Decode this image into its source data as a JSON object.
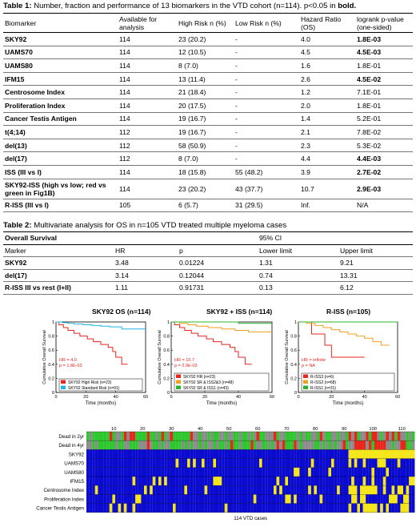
{
  "table1": {
    "caption_label": "Table 1:",
    "caption_text": " Number, fraction and performance of 13 biomarkers in the VTD cohort (n=114). p<0.05 in ",
    "caption_bold": "bold.",
    "headers": [
      "Biomarker",
      "Available for analysis",
      "High Risk n (%)",
      "Low Risk n (%)",
      "Hazard Ratio (OS)",
      "logrank p-value (one-sided)"
    ],
    "rows": [
      {
        "marker": "SKY92",
        "avail": "114",
        "high": "23 (20.2)",
        "low": "-",
        "hr": "4.0",
        "p": "1.8E-03",
        "sig": true
      },
      {
        "marker": "UAMS70",
        "avail": "114",
        "high": "12 (10.5)",
        "low": "-",
        "hr": "4.5",
        "p": "4.5E-03",
        "sig": true
      },
      {
        "marker": "UAMS80",
        "avail": "114",
        "high": "8 (7.0)",
        "low": "-",
        "hr": "1.6",
        "p": "1.8E-01",
        "sig": false
      },
      {
        "marker": "IFM15",
        "avail": "114",
        "high": "13 (11.4)",
        "low": "-",
        "hr": "2.6",
        "p": "4.5E-02",
        "sig": true
      },
      {
        "marker": "Centrosome Index",
        "avail": "114",
        "high": "21 (18.4)",
        "low": "-",
        "hr": "1.2",
        "p": "7.1E-01",
        "sig": false
      },
      {
        "marker": "Proliferation Index",
        "avail": "114",
        "high": "20 (17.5)",
        "low": "-",
        "hr": "2.0",
        "p": "1.8E-01",
        "sig": false
      },
      {
        "marker": "Cancer Testis Antigen",
        "avail": "114",
        "high": "19 (16.7)",
        "low": "-",
        "hr": "1.4",
        "p": "5.2E-01",
        "sig": false
      },
      {
        "marker": "t(4;14)",
        "avail": "112",
        "high": "19 (16.7)",
        "low": "-",
        "hr": "2.1",
        "p": "7.8E-02",
        "sig": false
      },
      {
        "marker": "del(13)",
        "avail": "112",
        "high": "58 (50.9)",
        "low": "-",
        "hr": "2.3",
        "p": "5.3E-02",
        "sig": false
      },
      {
        "marker": "del(17)",
        "avail": "112",
        "high": "8 (7.0)",
        "low": "-",
        "hr": "4.4",
        "p": "4.4E-03",
        "sig": true
      },
      {
        "marker": "ISS (III vs I)",
        "avail": "114",
        "high": "18 (15.8)",
        "low": "55 (48.2)",
        "hr": "3.9",
        "p": "2.7E-02",
        "sig": true
      },
      {
        "marker": "SKY92-ISS (high vs low; red vs green in Fig1B)",
        "avail": "114",
        "high": "23 (20.2)",
        "low": "43 (37.7)",
        "hr": "10.7",
        "p": "2.9E-03",
        "sig": true
      },
      {
        "marker": "R-ISS (III vs I)",
        "avail": "105",
        "high": "6 (5.7)",
        "low": "31 (29.5)",
        "hr": "Inf.",
        "p": "N/A",
        "sig": false
      }
    ]
  },
  "table2": {
    "caption_label": "Table 2:",
    "caption_text": " Multivariate analysis for OS in n=105 VTD treated multiple myeloma cases",
    "os_label": "Overall Survival",
    "ci_label": "95% CI",
    "headers": [
      "Marker",
      "HR",
      "p",
      "Lower limit",
      "Upper limit"
    ],
    "rows": [
      {
        "marker": "SKY92",
        "hr": "3.48",
        "p": "0.01224",
        "lower": "1.31",
        "upper": "9.21"
      },
      {
        "marker": "del(17)",
        "hr": "3.14",
        "p": "0.12044",
        "lower": "0.74",
        "upper": "13.31"
      },
      {
        "marker": "R-ISS III vs rest (I+II)",
        "hr": "1.11",
        "p": "0.91731",
        "lower": "0.13",
        "upper": "6.12"
      }
    ]
  },
  "chart_data": [
    {
      "type": "line",
      "title": "SKY92 OS (n=114)",
      "xlabel": "Time (months)",
      "ylabel": "Cumulative Overall Survival",
      "xlim": [
        0,
        60
      ],
      "ylim": [
        0,
        1
      ],
      "xticks": [
        "0",
        "20",
        "40",
        "60"
      ],
      "yticks": [
        "0",
        "0.2",
        "0.4",
        "0.6",
        "0.8",
        "1"
      ],
      "annotation": [
        "HR = 4.0",
        "p = 1.8E-03"
      ],
      "series": [
        {
          "name": "SKY92 High Risk (n=23)",
          "color": "#e8261c",
          "x": [
            0,
            2,
            5,
            8,
            12,
            16,
            21,
            25,
            30,
            35,
            38,
            40,
            44,
            48
          ],
          "y": [
            1,
            0.96,
            0.92,
            0.88,
            0.84,
            0.8,
            0.76,
            0.72,
            0.68,
            0.64,
            0.58,
            0.5,
            0.4,
            0.4
          ]
        },
        {
          "name": "SKY92 Standard Risk (n=91)",
          "color": "#20b4e8",
          "x": [
            0,
            4,
            8,
            12,
            18,
            24,
            30,
            36,
            44,
            50,
            60
          ],
          "y": [
            1,
            0.99,
            0.98,
            0.97,
            0.96,
            0.95,
            0.94,
            0.93,
            0.9,
            0.9,
            0.9
          ]
        }
      ]
    },
    {
      "type": "line",
      "title": "SKY92 + ISS (n=114)",
      "xlabel": "Time (months)",
      "ylabel": "Cumulative Overall Survival",
      "xlim": [
        0,
        60
      ],
      "ylim": [
        0,
        1
      ],
      "xticks": [
        "0",
        "20",
        "40",
        "60"
      ],
      "yticks": [
        "0",
        "0.2",
        "0.4",
        "0.6",
        "0.8",
        "1"
      ],
      "annotation": [
        "HR = 10.7",
        "p = 2.9E-03"
      ],
      "series": [
        {
          "name": "SKY92 HR (n=23)",
          "color": "#e8261c",
          "x": [
            0,
            2,
            5,
            8,
            12,
            16,
            21,
            25,
            30,
            35,
            38,
            40,
            44,
            48
          ],
          "y": [
            1,
            0.96,
            0.92,
            0.88,
            0.84,
            0.8,
            0.76,
            0.72,
            0.68,
            0.64,
            0.58,
            0.5,
            0.4,
            0.4
          ]
        },
        {
          "name": "SKY92 SR & ISS2&3 (n=48)",
          "color": "#f0a020",
          "x": [
            0,
            5,
            10,
            15,
            22,
            30,
            38,
            46,
            60
          ],
          "y": [
            1,
            0.98,
            0.96,
            0.94,
            0.92,
            0.9,
            0.88,
            0.86,
            0.86
          ]
        },
        {
          "name": "SKY92 SR & ISS1 (n=43)",
          "color": "#2cb52c",
          "x": [
            0,
            20,
            40,
            60
          ],
          "y": [
            1,
            1,
            0.98,
            0.98
          ]
        }
      ]
    },
    {
      "type": "line",
      "title": "R-ISS (n=105)",
      "xlabel": "Time (months)",
      "ylabel": "Cumulative Overall Survival",
      "xlim": [
        0,
        60
      ],
      "ylim": [
        0,
        1
      ],
      "xticks": [
        "0",
        "20",
        "40",
        "60"
      ],
      "yticks": [
        "0",
        "0.2",
        "0.4",
        "0.6",
        "0.8",
        "1"
      ],
      "annotation": [
        "HR = infinite",
        "p = NA"
      ],
      "series": [
        {
          "name": "R-ISS3 (n=6)",
          "color": "#e8261c",
          "x": [
            0,
            8,
            16,
            20,
            40
          ],
          "y": [
            1,
            0.83,
            0.67,
            0.5,
            0.5
          ]
        },
        {
          "name": "R-ISS2 (n=68)",
          "color": "#f0a020",
          "x": [
            0,
            5,
            10,
            15,
            20,
            25,
            30,
            35,
            40,
            45,
            50,
            55
          ],
          "y": [
            1,
            0.98,
            0.95,
            0.92,
            0.89,
            0.86,
            0.83,
            0.8,
            0.77,
            0.72,
            0.67,
            0.67
          ]
        },
        {
          "name": "R-ISS1 (n=31)",
          "color": "#2cb52c",
          "x": [
            0,
            60
          ],
          "y": [
            1,
            1
          ]
        }
      ]
    }
  ],
  "heatmap": {
    "row_labels": [
      "Dead in 2yr",
      "Dead in 4yr",
      "SKY92",
      "UAMS70",
      "UAMS80",
      "IFM15",
      "Centrosome Index",
      "Proliferation Index",
      "Cancer Testis Antigen"
    ],
    "col_ticks": [
      "10",
      "20",
      "30",
      "40",
      "50",
      "60",
      "70",
      "80",
      "90",
      "100",
      "110"
    ],
    "xlabel": "114 VTD cases",
    "n_cases": 114,
    "colors": {
      "positive": "#e8261c",
      "unknown": "#8c8c8c",
      "negative": "#2ec82e",
      "low": "#0a0ad0",
      "high": "#f5e61a"
    }
  }
}
